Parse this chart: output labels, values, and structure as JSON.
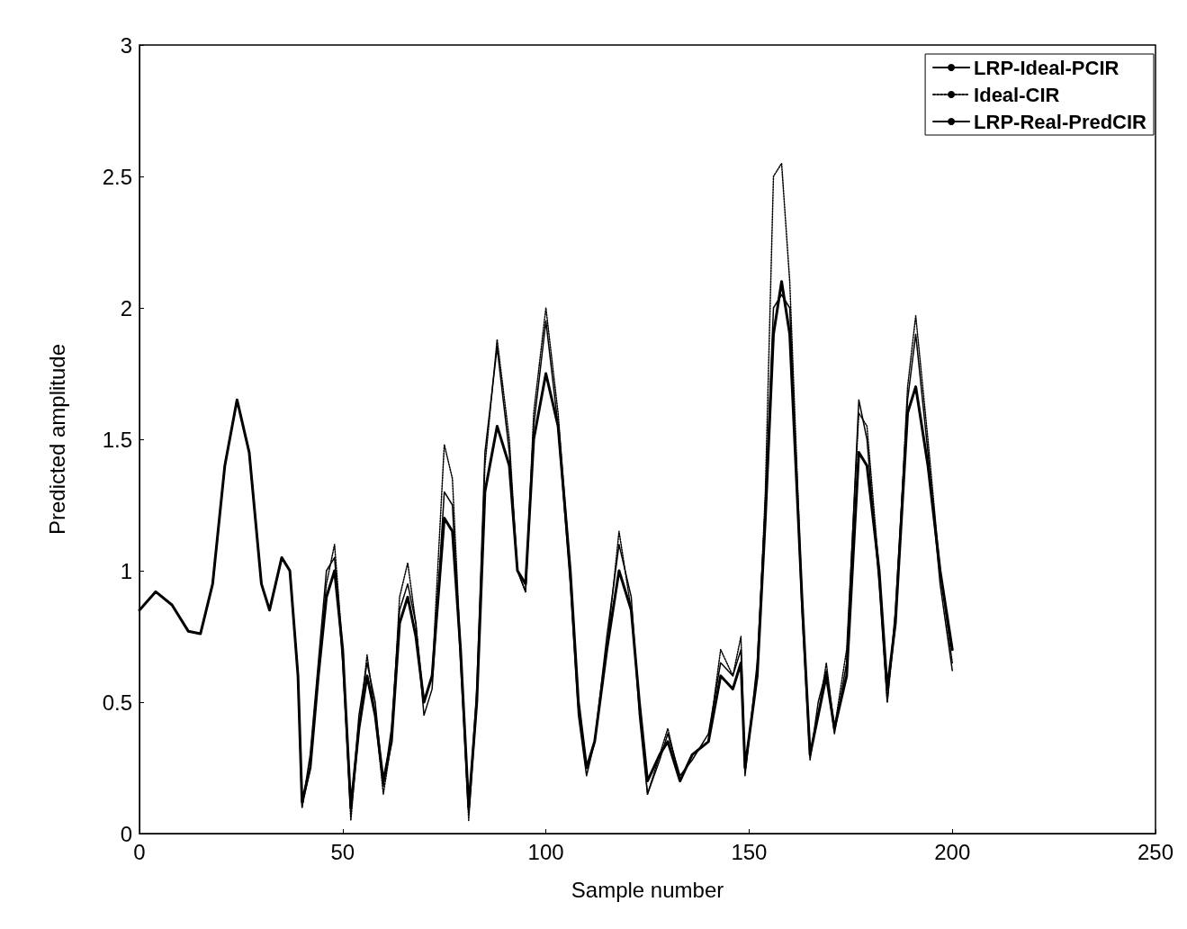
{
  "chart_data": {
    "type": "line",
    "xlabel": "Sample number",
    "ylabel": "Predicted amplitude",
    "xlim": [
      0,
      250
    ],
    "xticks": [
      0,
      50,
      100,
      150,
      200,
      250
    ],
    "ylim": [
      0,
      3
    ],
    "yticks": [
      0,
      0.5,
      1,
      1.5,
      2,
      2.5,
      3
    ],
    "grid": false,
    "legend": "top right",
    "marker": "none",
    "x": [
      0,
      4,
      8,
      12,
      15,
      18,
      21,
      24,
      27,
      30,
      32,
      35,
      37,
      39,
      40,
      42,
      44,
      46,
      48,
      50,
      52,
      54,
      56,
      58,
      60,
      62,
      64,
      66,
      68,
      70,
      72,
      75,
      77,
      79,
      81,
      83,
      85,
      88,
      91,
      93,
      95,
      97,
      100,
      103,
      106,
      108,
      110,
      112,
      115,
      118,
      121,
      123,
      125,
      128,
      130,
      133,
      136,
      140,
      143,
      146,
      148,
      149,
      152,
      154,
      156,
      158,
      160,
      163,
      165,
      167,
      169,
      171,
      174,
      177,
      179,
      182,
      184,
      186,
      189,
      191,
      194,
      197,
      200
    ],
    "series": [
      {
        "name": "LRP-Ideal-PCIR",
        "color": "#000000",
        "line_style": "solid",
        "values": [
          0.85,
          0.92,
          0.87,
          0.77,
          0.76,
          0.95,
          1.4,
          1.65,
          1.45,
          0.95,
          0.85,
          1.05,
          1.0,
          0.6,
          0.12,
          0.25,
          0.6,
          0.9,
          1.0,
          0.7,
          0.1,
          0.4,
          0.6,
          0.45,
          0.2,
          0.35,
          0.8,
          0.9,
          0.75,
          0.5,
          0.6,
          1.2,
          1.15,
          0.7,
          0.1,
          0.5,
          1.3,
          1.55,
          1.4,
          1.0,
          0.95,
          1.5,
          1.75,
          1.55,
          1.0,
          0.5,
          0.25,
          0.35,
          0.7,
          1.0,
          0.85,
          0.5,
          0.2,
          0.3,
          0.35,
          0.2,
          0.3,
          0.35,
          0.6,
          0.55,
          0.65,
          0.25,
          0.6,
          1.2,
          1.9,
          2.1,
          1.9,
          0.9,
          0.3,
          0.45,
          0.6,
          0.4,
          0.6,
          1.45,
          1.4,
          1.0,
          0.55,
          0.8,
          1.6,
          1.7,
          1.4,
          1.0,
          0.7
        ]
      },
      {
        "name": "Ideal-CIR",
        "color": "#000000",
        "line_style": "dotted",
        "values": [
          0.85,
          0.92,
          0.87,
          0.77,
          0.76,
          0.95,
          1.4,
          1.65,
          1.45,
          0.95,
          0.85,
          1.05,
          1.0,
          0.6,
          0.1,
          0.25,
          0.6,
          0.95,
          1.1,
          0.7,
          0.05,
          0.4,
          0.68,
          0.45,
          0.15,
          0.35,
          0.9,
          1.03,
          0.8,
          0.5,
          0.6,
          1.48,
          1.35,
          0.7,
          0.05,
          0.5,
          1.4,
          1.88,
          1.5,
          1.0,
          0.92,
          1.6,
          2.0,
          1.6,
          1.0,
          0.5,
          0.25,
          0.35,
          0.7,
          1.15,
          0.85,
          0.5,
          0.15,
          0.3,
          0.4,
          0.2,
          0.3,
          0.35,
          0.7,
          0.6,
          0.75,
          0.25,
          0.6,
          1.3,
          2.5,
          2.55,
          2.1,
          0.9,
          0.3,
          0.45,
          0.65,
          0.4,
          0.7,
          1.6,
          1.55,
          1.0,
          0.5,
          0.8,
          1.7,
          1.97,
          1.5,
          1.0,
          0.65
        ]
      },
      {
        "name": "LRP-Real-PredCIR",
        "color": "#000000",
        "line_style": "solid",
        "values": [
          0.85,
          0.92,
          0.87,
          0.77,
          0.76,
          0.95,
          1.4,
          1.65,
          1.45,
          0.95,
          0.85,
          1.05,
          1.0,
          0.6,
          0.1,
          0.3,
          0.65,
          1.0,
          1.05,
          0.65,
          0.08,
          0.45,
          0.65,
          0.5,
          0.18,
          0.4,
          0.85,
          0.95,
          0.8,
          0.45,
          0.55,
          1.3,
          1.25,
          0.65,
          0.08,
          0.55,
          1.45,
          1.85,
          1.45,
          1.0,
          0.92,
          1.55,
          1.95,
          1.55,
          0.95,
          0.45,
          0.22,
          0.35,
          0.75,
          1.1,
          0.9,
          0.45,
          0.15,
          0.28,
          0.38,
          0.22,
          0.28,
          0.38,
          0.65,
          0.6,
          0.7,
          0.22,
          0.65,
          1.25,
          2.0,
          2.05,
          2.0,
          0.85,
          0.28,
          0.5,
          0.62,
          0.38,
          0.65,
          1.65,
          1.5,
          0.95,
          0.5,
          0.85,
          1.65,
          1.9,
          1.45,
          0.95,
          0.62
        ]
      }
    ]
  }
}
